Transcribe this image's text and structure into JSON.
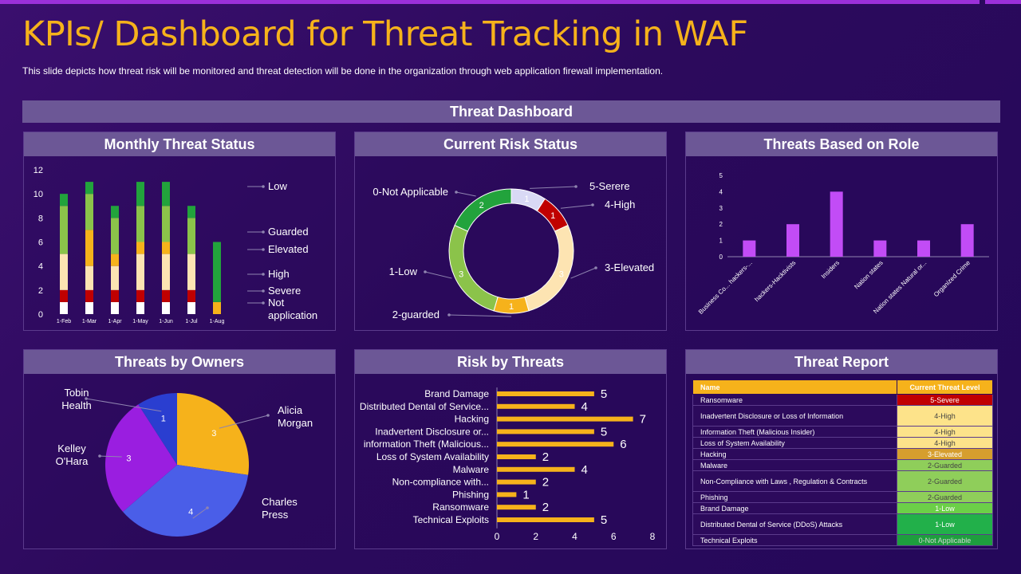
{
  "title": "KPIs/ Dashboard for Threat Tracking in WAF",
  "subtitle": "This slide depicts how threat risk will be monitored and threat detection will be done in the organization through web application firewall implementation.",
  "dashboard_header": "Threat Dashboard",
  "panels": {
    "monthly": "Monthly Threat Status",
    "current_risk": "Current Risk Status",
    "role": "Threats Based on Role",
    "owners": "Threats by Owners",
    "risk_threats": "Risk by Threats",
    "report": "Threat Report"
  },
  "colors": {
    "accent": "#f6b21b",
    "panel_header": "#6c5796",
    "not_applicable": "#ffffff",
    "severe": "#c00000",
    "high": "#fde4b2",
    "elevated": "#f6b21b",
    "guarded": "#8bc34a",
    "low": "#22a33c",
    "role_bar": "#c24cf6"
  },
  "chart_data": [
    {
      "type": "bar",
      "stacked": true,
      "categories": [
        "1-Feb",
        "1-Mar",
        "1-Apr",
        "1-May",
        "1-Jun",
        "1-Jul",
        "1-Aug"
      ],
      "series": [
        {
          "name": "Not application",
          "color": "#ffffff",
          "values": [
            1,
            1,
            1,
            1,
            1,
            1,
            0
          ]
        },
        {
          "name": "Severe",
          "color": "#c00000",
          "values": [
            1,
            1,
            1,
            1,
            1,
            1,
            0
          ]
        },
        {
          "name": "High",
          "color": "#fde4b2",
          "values": [
            3,
            2,
            2,
            3,
            3,
            3,
            0
          ]
        },
        {
          "name": "Elevated",
          "color": "#f6b21b",
          "values": [
            0,
            3,
            1,
            1,
            1,
            0,
            1
          ]
        },
        {
          "name": "Guarded",
          "color": "#8bc34a",
          "values": [
            4,
            3,
            3,
            3,
            3,
            3,
            0
          ]
        },
        {
          "name": "Low",
          "color": "#22a33c",
          "values": [
            1,
            1,
            1,
            2,
            2,
            1,
            5
          ]
        }
      ],
      "yticks": [
        "0",
        "2",
        "4",
        "6",
        "8",
        "10",
        "12"
      ],
      "ylim": [
        0,
        12
      ]
    },
    {
      "type": "pie",
      "donut": true,
      "slices": [
        {
          "label": "5-Serere",
          "value": 1,
          "color": "#d9d9f5"
        },
        {
          "label": "4-High",
          "value": 1,
          "color": "#c00000"
        },
        {
          "label": "3-Elevated",
          "value": 3,
          "color": "#fde4b2"
        },
        {
          "label": "2-guarded",
          "value": 1,
          "color": "#f6b21b"
        },
        {
          "label": "1-Low",
          "value": 3,
          "color": "#8bc34a"
        },
        {
          "label": "0-Not Applicable",
          "value": 2,
          "color": "#22a33c"
        }
      ]
    },
    {
      "type": "bar",
      "categories": [
        "Business Co... hackers-...",
        "hackers-Hacktivists",
        "Insiders",
        "Nation states",
        "Nation states Natural or...",
        "Organized Crime"
      ],
      "values": [
        1,
        2,
        4,
        1,
        1,
        2
      ],
      "yticks": [
        "0",
        "1",
        "2",
        "3",
        "4",
        "5"
      ],
      "ylim": [
        0,
        5
      ]
    },
    {
      "type": "pie",
      "slices": [
        {
          "label": "Alicia Morgan",
          "label_lines": [
            "Alicia",
            "Morgan"
          ],
          "value": 3,
          "color": "#f6b21b"
        },
        {
          "label": "Charles Press",
          "label_lines": [
            "Charles",
            "Press"
          ],
          "value": 4,
          "color": "#4a5ee8"
        },
        {
          "label": "Kelley O'Hara",
          "label_lines": [
            "Kelley",
            "O'Hara"
          ],
          "value": 3,
          "color": "#9a1ee0"
        },
        {
          "label": "Tobin Health",
          "label_lines": [
            "Tobin",
            "Health"
          ],
          "value": 1,
          "color": "#2a3ed0"
        }
      ]
    },
    {
      "type": "bar",
      "orientation": "horizontal",
      "categories": [
        "Brand Damage",
        "Distributed Dental of Service...",
        "Hacking",
        "Inadvertent Disclosure or...",
        "information Theft (Malicious...",
        "Loss of System Availability",
        "Malware",
        "Non-compliance with...",
        "Phishing",
        "Ransomware",
        "Technical Exploits"
      ],
      "values": [
        5,
        4,
        7,
        5,
        6,
        2,
        4,
        2,
        1,
        2,
        5
      ],
      "xticks": [
        "0",
        "2",
        "4",
        "6",
        "8"
      ],
      "xlim": [
        0,
        8
      ]
    }
  ],
  "report": {
    "headers": [
      "Name",
      "Current Threat Level"
    ],
    "rows": [
      {
        "name": "Ransomware",
        "level": "5-Severe",
        "color": "#c00000",
        "text": "#ffffff",
        "h": 14
      },
      {
        "name": "Inadvertent Disclosure or Loss of Information",
        "level": "4-High",
        "color": "#fde38a",
        "text": "#444444",
        "h": 26
      },
      {
        "name": "Information Theft (Malicious Insider)",
        "level": "4-High",
        "color": "#fde38a",
        "text": "#444444",
        "h": 14
      },
      {
        "name": "Loss of System Availability",
        "level": "4-High",
        "color": "#fde38a",
        "text": "#444444",
        "h": 14
      },
      {
        "name": "Hacking",
        "level": "3-Elevated",
        "color": "#d69e2e",
        "text": "#ffffff",
        "h": 14
      },
      {
        "name": "Malware",
        "level": "2-Guarded",
        "color": "#8fce5a",
        "text": "#444444",
        "h": 14
      },
      {
        "name": "Non-Compliance with Laws , Regulation & Contracts",
        "level": "2-Guarded",
        "color": "#8fce5a",
        "text": "#444444",
        "h": 26
      },
      {
        "name": "Phishing",
        "level": "2-Guarded",
        "color": "#8fce5a",
        "text": "#444444",
        "h": 14
      },
      {
        "name": "Brand Damage",
        "level": "1-Low",
        "color": "#6ccf48",
        "text": "#ffffff",
        "h": 14
      },
      {
        "name": "Distributed Dental of Service (DDoS) Attacks",
        "level": "1-Low",
        "color": "#22b04a",
        "text": "#ffffff",
        "h": 26
      },
      {
        "name": "Technical Exploits",
        "level": "0-Not Applicable",
        "color": "#1e9e3e",
        "text": "#cfd8cf",
        "h": 14
      }
    ]
  }
}
